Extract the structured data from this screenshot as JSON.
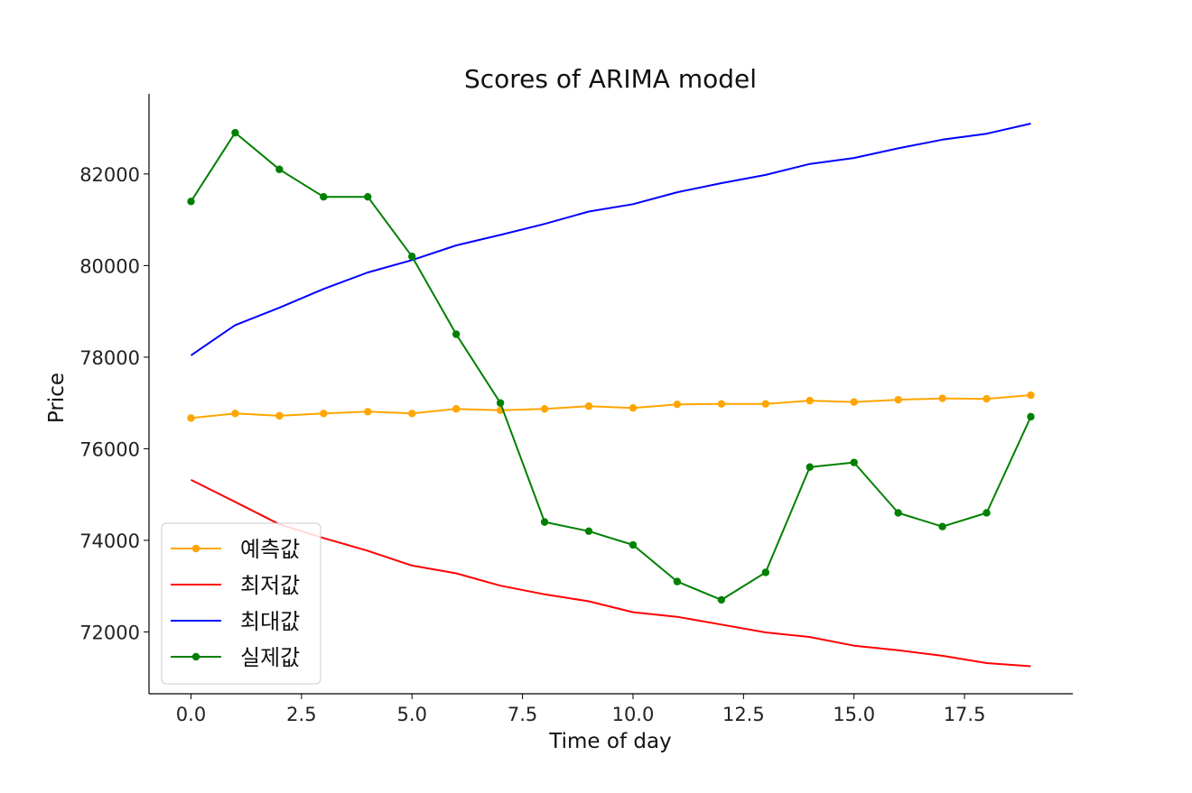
{
  "chart_data": {
    "type": "line",
    "title": "Scores of ARIMA model",
    "xlabel": "Time of day",
    "ylabel": "Price",
    "xlim": [
      -0.95,
      19.95
    ],
    "ylim": [
      70650,
      83750
    ],
    "x_ticks": [
      "0.0",
      "2.5",
      "5.0",
      "7.5",
      "10.0",
      "12.5",
      "15.0",
      "17.5"
    ],
    "y_ticks": [
      "72000",
      "74000",
      "76000",
      "78000",
      "80000",
      "82000"
    ],
    "grid": false,
    "legend_position": "lower-left",
    "x": [
      0,
      1,
      2,
      3,
      4,
      5,
      6,
      7,
      8,
      9,
      10,
      11,
      12,
      13,
      14,
      15,
      16,
      17,
      18,
      19
    ],
    "series": [
      {
        "name": "예측값",
        "color": "#ffa500",
        "marker": true,
        "values": [
          76670,
          76770,
          76720,
          76770,
          76810,
          76770,
          76870,
          76840,
          76870,
          76930,
          76890,
          76970,
          76980,
          76980,
          77050,
          77020,
          77070,
          77100,
          77090,
          77170
        ]
      },
      {
        "name": "최저값",
        "color": "#ff0000",
        "marker": false,
        "values": [
          75320,
          74840,
          74350,
          74050,
          73770,
          73450,
          73280,
          73010,
          72820,
          72670,
          72430,
          72330,
          72160,
          71990,
          71890,
          71700,
          71600,
          71480,
          71320,
          71250
        ]
      },
      {
        "name": "최대값",
        "color": "#0000ff",
        "marker": false,
        "values": [
          78040,
          78700,
          79080,
          79490,
          79850,
          80120,
          80440,
          80670,
          80910,
          81180,
          81340,
          81600,
          81800,
          81980,
          82220,
          82350,
          82560,
          82750,
          82880,
          83100
        ]
      },
      {
        "name": "실제값",
        "color": "#008000",
        "marker": true,
        "values": [
          81400,
          82900,
          82100,
          81500,
          81500,
          80200,
          78500,
          77000,
          74400,
          74200,
          73900,
          73100,
          72700,
          73300,
          75600,
          75700,
          74600,
          74300,
          74600,
          76700
        ]
      }
    ]
  }
}
